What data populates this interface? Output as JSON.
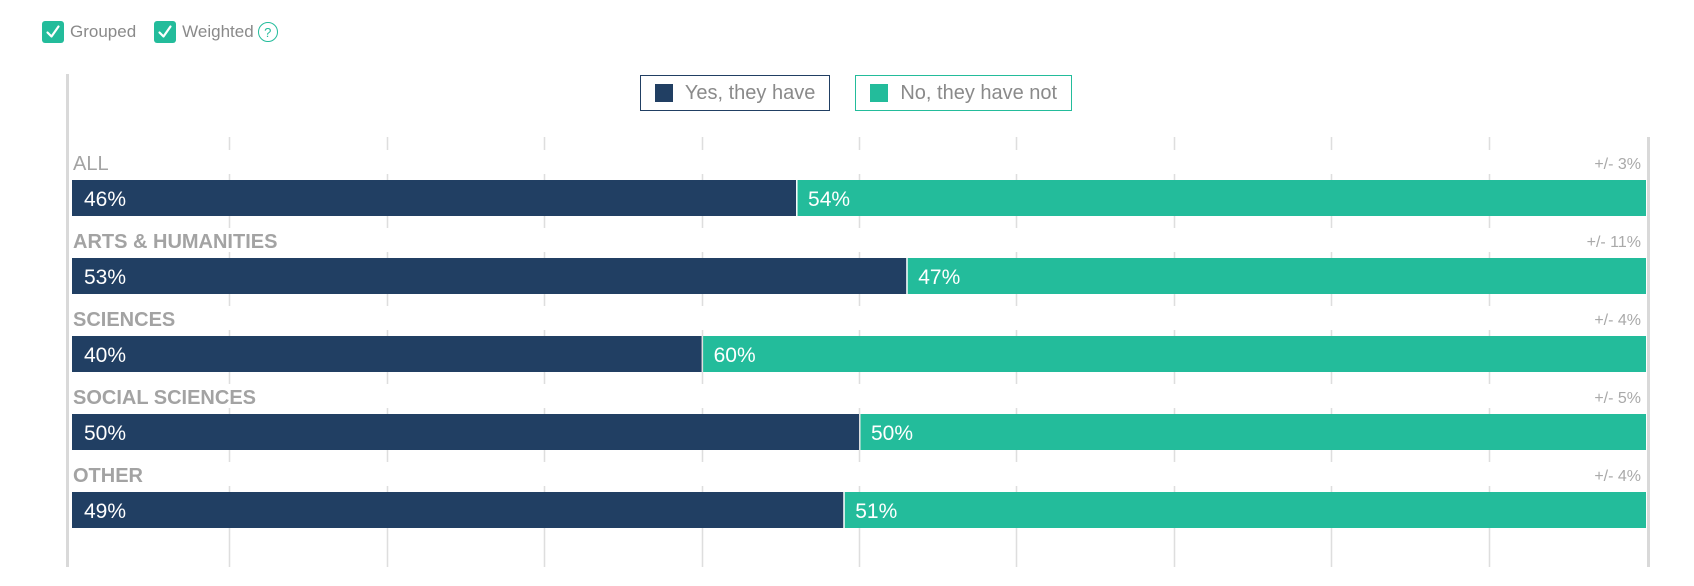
{
  "controls": {
    "grouped_label": "Grouped",
    "weighted_label": "Weighted",
    "help_glyph": "?"
  },
  "colors": {
    "yes": "#213f63",
    "no": "#23bc9b",
    "grid": "#dedede",
    "category_text": "#a3a3a3",
    "margin_text": "#a9a9a9"
  },
  "chart_data": {
    "type": "bar",
    "orientation": "horizontal",
    "stacked": true,
    "percent_stacked": true,
    "legend_position": "top-center",
    "grid": true,
    "categories": [
      "ALL",
      "ARTS & HUMANITIES",
      "SCIENCES",
      "SOCIAL SCIENCES",
      "OTHER"
    ],
    "series": [
      {
        "name": "Yes, they have",
        "values": [
          46,
          53,
          40,
          50,
          49
        ],
        "labels": [
          "46%",
          "53%",
          "40%",
          "50%",
          "49%"
        ]
      },
      {
        "name": "No, they have not",
        "values": [
          54,
          47,
          60,
          50,
          51
        ],
        "labels": [
          "54%",
          "47%",
          "60%",
          "50%",
          "51%"
        ]
      }
    ],
    "margins_of_error": [
      "+/- 3%",
      "+/- 11%",
      "+/- 4%",
      "+/- 5%",
      "+/- 4%"
    ],
    "xlim": [
      0,
      100
    ]
  }
}
